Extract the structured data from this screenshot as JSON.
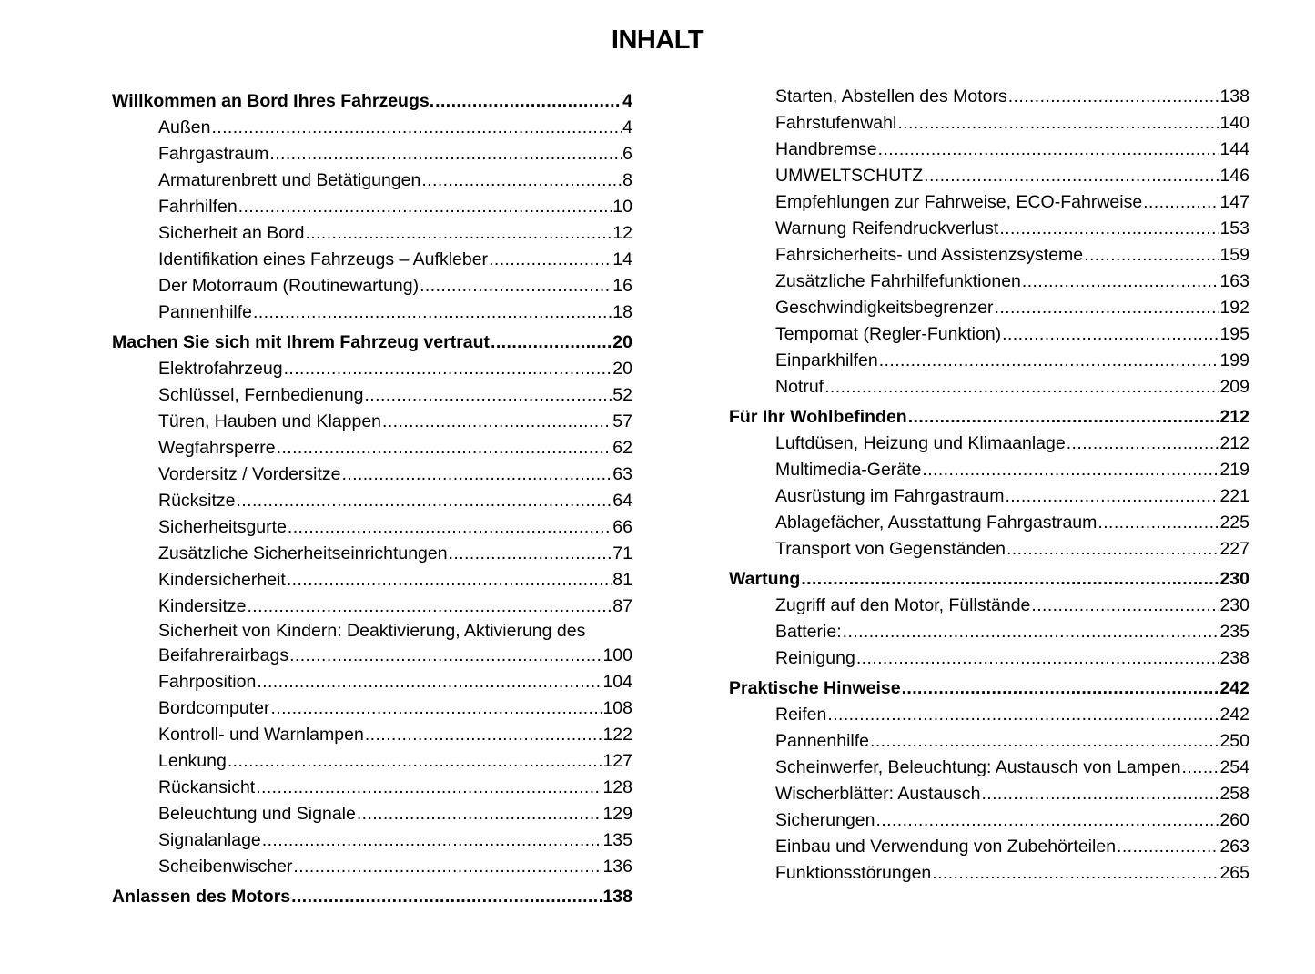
{
  "title": "INHALT",
  "columns": [
    [
      {
        "type": "head",
        "label": "Willkommen an Bord Ihres Fahrzeugs.",
        "page": "4"
      },
      {
        "type": "sub",
        "label": "Außen",
        "page": "4"
      },
      {
        "type": "sub",
        "label": "Fahrgastraum",
        "page": "6"
      },
      {
        "type": "sub",
        "label": "Armaturenbrett und Betätigungen",
        "page": "8"
      },
      {
        "type": "sub",
        "label": "Fahrhilfen",
        "page": "10"
      },
      {
        "type": "sub",
        "label": "Sicherheit an Bord",
        "page": "12"
      },
      {
        "type": "sub",
        "label": "Identifikation eines Fahrzeugs – Aufkleber",
        "page": "14"
      },
      {
        "type": "sub",
        "label": "Der Motorraum (Routinewartung)",
        "page": "16"
      },
      {
        "type": "sub",
        "label": "Pannenhilfe",
        "page": "18"
      },
      {
        "type": "head",
        "label": "Machen Sie sich mit Ihrem Fahrzeug vertraut",
        "page": "20"
      },
      {
        "type": "sub",
        "label": "Elektrofahrzeug",
        "page": "20"
      },
      {
        "type": "sub",
        "label": "Schlüssel, Fernbedienung",
        "page": "52"
      },
      {
        "type": "sub",
        "label": "Türen, Hauben und Klappen",
        "page": "57"
      },
      {
        "type": "sub",
        "label": "Wegfahrsperre",
        "page": "62"
      },
      {
        "type": "sub",
        "label": "Vordersitz / Vordersitze",
        "page": "63"
      },
      {
        "type": "sub",
        "label": "Rücksitze",
        "page": "64"
      },
      {
        "type": "sub",
        "label": "Sicherheitsgurte",
        "page": "66"
      },
      {
        "type": "sub",
        "label": "Zusätzliche Sicherheitseinrichtungen",
        "page": "71"
      },
      {
        "type": "sub",
        "label": "Kindersicherheit",
        "page": "81"
      },
      {
        "type": "sub",
        "label": "Kindersitze",
        "page": "87"
      },
      {
        "type": "multi",
        "lines": [
          "Sicherheit von Kindern: Deaktivierung, Aktivierung des",
          "Beifahrerairbags"
        ],
        "page": "100"
      },
      {
        "type": "sub",
        "label": "Fahrposition",
        "page": "104"
      },
      {
        "type": "sub",
        "label": "Bordcomputer",
        "page": "108"
      },
      {
        "type": "sub",
        "label": "Kontroll- und Warnlampen",
        "page": "122"
      },
      {
        "type": "sub",
        "label": "Lenkung",
        "page": "127"
      },
      {
        "type": "sub",
        "label": "Rückansicht",
        "page": "128"
      },
      {
        "type": "sub",
        "label": "Beleuchtung und Signale",
        "page": "129"
      },
      {
        "type": "sub",
        "label": "Signalanlage",
        "page": "135"
      },
      {
        "type": "sub",
        "label": "Scheibenwischer",
        "page": "136"
      },
      {
        "type": "head",
        "label": "Anlassen des Motors",
        "page": "138"
      }
    ],
    [
      {
        "type": "sub",
        "label": "Starten, Abstellen des Motors",
        "page": "138"
      },
      {
        "type": "sub",
        "label": "Fahrstufenwahl",
        "page": "140"
      },
      {
        "type": "sub",
        "label": "Handbremse",
        "page": "144"
      },
      {
        "type": "sub",
        "label": "UMWELTSCHUTZ",
        "page": "146"
      },
      {
        "type": "sub",
        "label": "Empfehlungen zur Fahrweise, ECO-Fahrweise",
        "page": "147"
      },
      {
        "type": "sub",
        "label": "Warnung Reifendruckverlust",
        "page": "153"
      },
      {
        "type": "sub",
        "label": "Fahrsicherheits- und Assistenzsysteme",
        "page": "159"
      },
      {
        "type": "sub",
        "label": "Zusätzliche Fahrhilfefunktionen",
        "page": "163"
      },
      {
        "type": "sub",
        "label": "Geschwindigkeitsbegrenzer",
        "page": "192"
      },
      {
        "type": "sub",
        "label": "Tempomat (Regler-Funktion)",
        "page": "195"
      },
      {
        "type": "sub",
        "label": "Einparkhilfen",
        "page": "199"
      },
      {
        "type": "sub",
        "label": "Notruf",
        "page": "209"
      },
      {
        "type": "head",
        "label": "Für Ihr Wohlbefinden",
        "page": "212"
      },
      {
        "type": "sub",
        "label": "Luftdüsen, Heizung und Klimaanlage",
        "page": "212"
      },
      {
        "type": "sub",
        "label": "Multimedia-Geräte",
        "page": "219"
      },
      {
        "type": "sub",
        "label": "Ausrüstung im Fahrgastraum",
        "page": "221"
      },
      {
        "type": "sub",
        "label": "Ablagefächer, Ausstattung Fahrgastraum",
        "page": "225"
      },
      {
        "type": "sub",
        "label": "Transport von Gegenständen",
        "page": "227"
      },
      {
        "type": "head",
        "label": "Wartung",
        "page": "230"
      },
      {
        "type": "sub",
        "label": "Zugriff auf den Motor, Füllstände",
        "page": "230"
      },
      {
        "type": "sub",
        "label": "Batterie:",
        "page": "235"
      },
      {
        "type": "sub",
        "label": "Reinigung",
        "page": "238"
      },
      {
        "type": "head",
        "label": "Praktische Hinweise",
        "page": "242"
      },
      {
        "type": "sub",
        "label": "Reifen",
        "page": "242"
      },
      {
        "type": "sub",
        "label": "Pannenhilfe",
        "page": "250"
      },
      {
        "type": "sub",
        "label": "Scheinwerfer, Beleuchtung: Austausch von Lampen",
        "page": "254"
      },
      {
        "type": "sub",
        "label": "Wischerblätter: Austausch",
        "page": "258"
      },
      {
        "type": "sub",
        "label": "Sicherungen",
        "page": "260"
      },
      {
        "type": "sub",
        "label": "Einbau und Verwendung von Zubehörteilen",
        "page": "263"
      },
      {
        "type": "sub",
        "label": "Funktionsstörungen",
        "page": "265"
      }
    ]
  ]
}
